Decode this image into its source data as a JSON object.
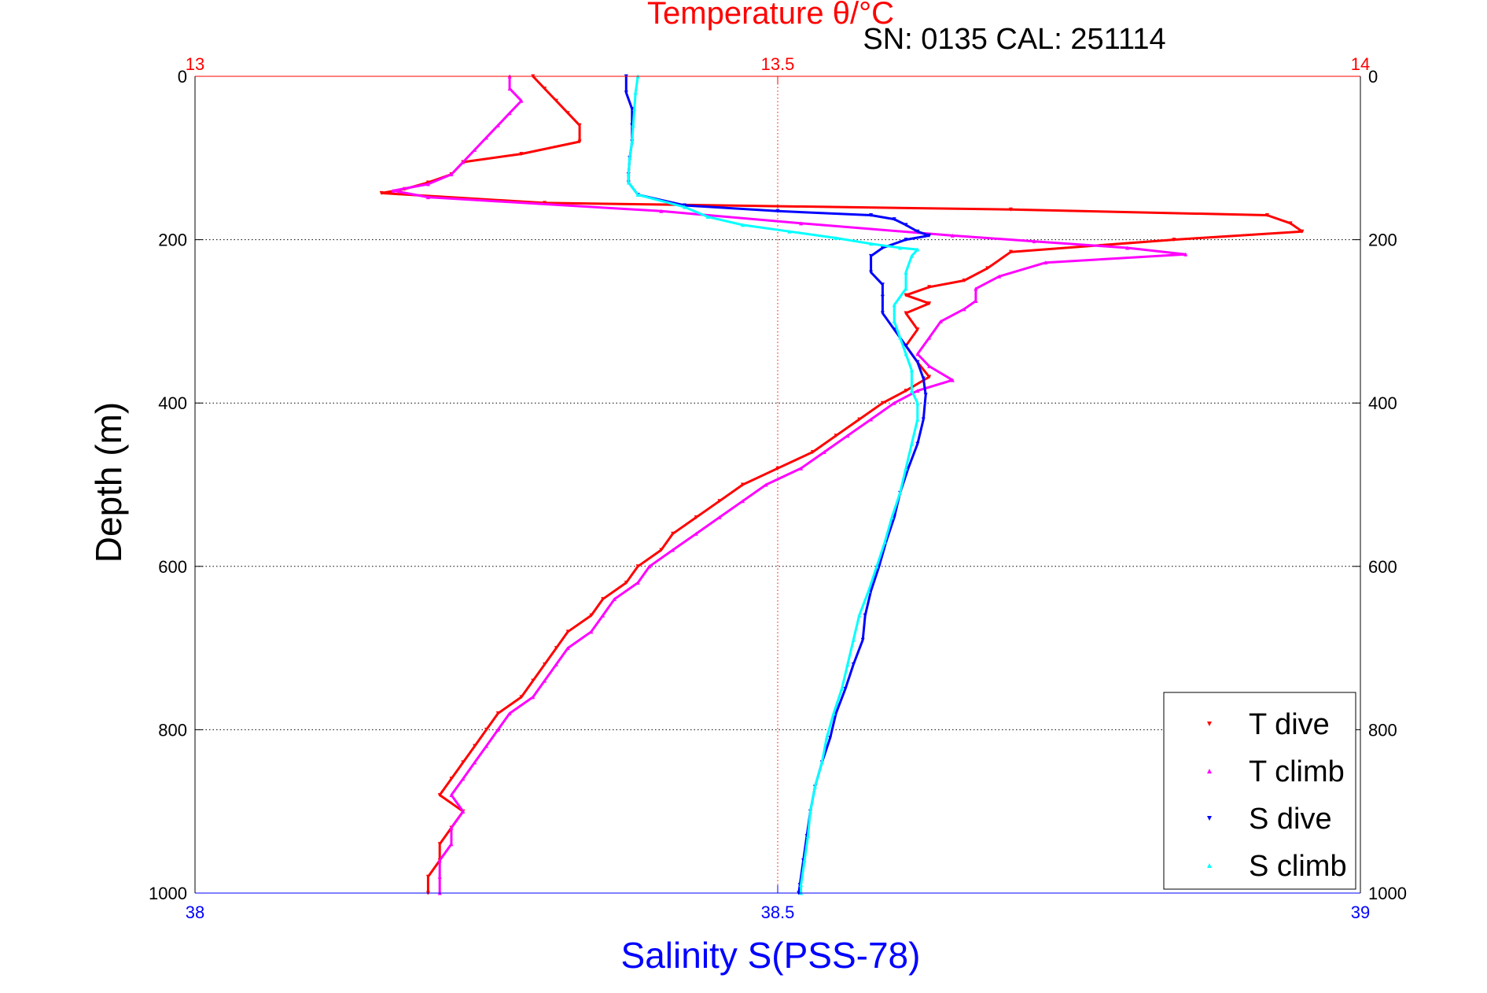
{
  "chart_data": {
    "type": "scatter",
    "title": "Temperature θ/°C",
    "subtitle": "SN: 0135  CAL: 251114",
    "xlabel": "Salinity S(PSS-78)",
    "ylabel": "Depth (m)",
    "top_axis": {
      "range": [
        13,
        14
      ],
      "ticks": [
        "13",
        "13.5",
        "14"
      ],
      "color": "#ff0000"
    },
    "bottom_axis": {
      "range": [
        38,
        39
      ],
      "ticks": [
        "38",
        "38.5",
        "39"
      ],
      "color": "#0000ff"
    },
    "y_axis": {
      "range": [
        0,
        1000
      ],
      "reversed": true,
      "ticks": [
        "0",
        "200",
        "400",
        "600",
        "800",
        "1000"
      ]
    },
    "grid": true,
    "legend_placement": "bottom-right",
    "series": [
      {
        "name": "T dive",
        "axis": "top",
        "marker": "triangle-down",
        "color": "#ff0000",
        "points": [
          [
            13.29,
            0
          ],
          [
            13.3,
            15
          ],
          [
            13.31,
            30
          ],
          [
            13.32,
            45
          ],
          [
            13.33,
            60
          ],
          [
            13.33,
            80
          ],
          [
            13.28,
            95
          ],
          [
            13.23,
            105
          ],
          [
            13.22,
            120
          ],
          [
            13.2,
            130
          ],
          [
            13.18,
            138
          ],
          [
            13.16,
            143
          ],
          [
            13.3,
            155
          ],
          [
            13.7,
            163
          ],
          [
            13.92,
            170
          ],
          [
            13.94,
            180
          ],
          [
            13.95,
            190
          ],
          [
            13.84,
            200
          ],
          [
            13.7,
            215
          ],
          [
            13.68,
            235
          ],
          [
            13.66,
            250
          ],
          [
            13.63,
            258
          ],
          [
            13.61,
            268
          ],
          [
            13.63,
            278
          ],
          [
            13.61,
            290
          ],
          [
            13.62,
            310
          ],
          [
            13.61,
            330
          ],
          [
            13.62,
            350
          ],
          [
            13.63,
            368
          ],
          [
            13.61,
            385
          ],
          [
            13.59,
            400
          ],
          [
            13.57,
            420
          ],
          [
            13.55,
            440
          ],
          [
            13.53,
            460
          ],
          [
            13.5,
            480
          ],
          [
            13.47,
            500
          ],
          [
            13.45,
            520
          ],
          [
            13.43,
            540
          ],
          [
            13.41,
            560
          ],
          [
            13.4,
            580
          ],
          [
            13.38,
            600
          ],
          [
            13.37,
            620
          ],
          [
            13.35,
            640
          ],
          [
            13.34,
            660
          ],
          [
            13.32,
            680
          ],
          [
            13.31,
            700
          ],
          [
            13.3,
            720
          ],
          [
            13.29,
            740
          ],
          [
            13.28,
            760
          ],
          [
            13.26,
            780
          ],
          [
            13.25,
            800
          ],
          [
            13.24,
            820
          ],
          [
            13.23,
            840
          ],
          [
            13.22,
            860
          ],
          [
            13.21,
            880
          ],
          [
            13.23,
            900
          ],
          [
            13.22,
            920
          ],
          [
            13.21,
            940
          ],
          [
            13.21,
            960
          ],
          [
            13.2,
            980
          ],
          [
            13.2,
            1000
          ]
        ]
      },
      {
        "name": "T climb",
        "axis": "top",
        "marker": "triangle-up",
        "color": "#ff00ff",
        "points": [
          [
            13.27,
            0
          ],
          [
            13.27,
            15
          ],
          [
            13.28,
            30
          ],
          [
            13.27,
            45
          ],
          [
            13.26,
            60
          ],
          [
            13.25,
            75
          ],
          [
            13.24,
            90
          ],
          [
            13.23,
            105
          ],
          [
            13.22,
            120
          ],
          [
            13.2,
            132
          ],
          [
            13.17,
            140
          ],
          [
            13.2,
            148
          ],
          [
            13.4,
            165
          ],
          [
            13.52,
            180
          ],
          [
            13.65,
            195
          ],
          [
            13.72,
            202
          ],
          [
            13.8,
            210
          ],
          [
            13.85,
            218
          ],
          [
            13.73,
            228
          ],
          [
            13.69,
            245
          ],
          [
            13.67,
            260
          ],
          [
            13.67,
            275
          ],
          [
            13.66,
            285
          ],
          [
            13.64,
            300
          ],
          [
            13.63,
            320
          ],
          [
            13.62,
            340
          ],
          [
            13.63,
            355
          ],
          [
            13.65,
            372
          ],
          [
            13.62,
            385
          ],
          [
            13.6,
            400
          ],
          [
            13.58,
            420
          ],
          [
            13.56,
            440
          ],
          [
            13.54,
            460
          ],
          [
            13.52,
            480
          ],
          [
            13.49,
            500
          ],
          [
            13.47,
            520
          ],
          [
            13.45,
            540
          ],
          [
            13.43,
            560
          ],
          [
            13.41,
            580
          ],
          [
            13.39,
            600
          ],
          [
            13.38,
            620
          ],
          [
            13.36,
            640
          ],
          [
            13.35,
            660
          ],
          [
            13.34,
            680
          ],
          [
            13.32,
            700
          ],
          [
            13.31,
            720
          ],
          [
            13.3,
            740
          ],
          [
            13.29,
            760
          ],
          [
            13.27,
            780
          ],
          [
            13.26,
            800
          ],
          [
            13.25,
            820
          ],
          [
            13.24,
            840
          ],
          [
            13.23,
            860
          ],
          [
            13.22,
            880
          ],
          [
            13.23,
            900
          ],
          [
            13.22,
            920
          ],
          [
            13.22,
            940
          ],
          [
            13.21,
            960
          ],
          [
            13.21,
            980
          ],
          [
            13.21,
            1000
          ]
        ]
      },
      {
        "name": "S dive",
        "axis": "bottom",
        "marker": "triangle-down",
        "color": "#0000ff",
        "points": [
          [
            38.37,
            0
          ],
          [
            38.37,
            20
          ],
          [
            38.375,
            40
          ],
          [
            38.375,
            60
          ],
          [
            38.375,
            80
          ],
          [
            38.373,
            100
          ],
          [
            38.372,
            120
          ],
          [
            38.372,
            130
          ],
          [
            38.38,
            145
          ],
          [
            38.42,
            158
          ],
          [
            38.5,
            165
          ],
          [
            38.58,
            170
          ],
          [
            38.6,
            175
          ],
          [
            38.61,
            182
          ],
          [
            38.62,
            190
          ],
          [
            38.63,
            195
          ],
          [
            38.61,
            200
          ],
          [
            38.59,
            210
          ],
          [
            38.58,
            220
          ],
          [
            38.58,
            240
          ],
          [
            38.59,
            255
          ],
          [
            38.59,
            270
          ],
          [
            38.59,
            290
          ],
          [
            38.6,
            310
          ],
          [
            38.61,
            330
          ],
          [
            38.62,
            350
          ],
          [
            38.625,
            370
          ],
          [
            38.627,
            390
          ],
          [
            38.625,
            420
          ],
          [
            38.62,
            450
          ],
          [
            38.612,
            480
          ],
          [
            38.605,
            510
          ],
          [
            38.6,
            540
          ],
          [
            38.593,
            570
          ],
          [
            38.587,
            600
          ],
          [
            38.58,
            630
          ],
          [
            38.575,
            660
          ],
          [
            38.573,
            690
          ],
          [
            38.565,
            720
          ],
          [
            38.558,
            750
          ],
          [
            38.55,
            780
          ],
          [
            38.545,
            810
          ],
          [
            38.538,
            840
          ],
          [
            38.532,
            870
          ],
          [
            38.528,
            900
          ],
          [
            38.525,
            930
          ],
          [
            38.522,
            960
          ],
          [
            38.519,
            990
          ],
          [
            38.518,
            1000
          ]
        ]
      },
      {
        "name": "S climb",
        "axis": "bottom",
        "marker": "triangle-up",
        "color": "#00ffff",
        "points": [
          [
            38.38,
            0
          ],
          [
            38.378,
            20
          ],
          [
            38.377,
            40
          ],
          [
            38.376,
            60
          ],
          [
            38.375,
            80
          ],
          [
            38.373,
            100
          ],
          [
            38.372,
            120
          ],
          [
            38.372,
            130
          ],
          [
            38.38,
            145
          ],
          [
            38.42,
            160
          ],
          [
            38.44,
            172
          ],
          [
            38.47,
            182
          ],
          [
            38.51,
            190
          ],
          [
            38.55,
            198
          ],
          [
            38.58,
            205
          ],
          [
            38.605,
            210
          ],
          [
            38.62,
            212
          ],
          [
            38.615,
            220
          ],
          [
            38.61,
            240
          ],
          [
            38.61,
            260
          ],
          [
            38.6,
            280
          ],
          [
            38.6,
            300
          ],
          [
            38.605,
            320
          ],
          [
            38.61,
            340
          ],
          [
            38.615,
            360
          ],
          [
            38.615,
            385
          ],
          [
            38.62,
            400
          ],
          [
            38.62,
            420
          ],
          [
            38.615,
            450
          ],
          [
            38.61,
            480
          ],
          [
            38.605,
            510
          ],
          [
            38.598,
            540
          ],
          [
            38.592,
            570
          ],
          [
            38.585,
            600
          ],
          [
            38.578,
            630
          ],
          [
            38.57,
            660
          ],
          [
            38.565,
            690
          ],
          [
            38.56,
            720
          ],
          [
            38.555,
            750
          ],
          [
            38.548,
            780
          ],
          [
            38.542,
            810
          ],
          [
            38.538,
            840
          ],
          [
            38.532,
            870
          ],
          [
            38.528,
            900
          ],
          [
            38.526,
            930
          ],
          [
            38.523,
            960
          ],
          [
            38.52,
            990
          ],
          [
            38.52,
            1000
          ]
        ]
      }
    ]
  }
}
